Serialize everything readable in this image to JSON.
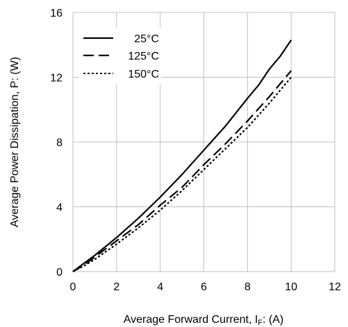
{
  "chart_data": {
    "type": "line",
    "xlabel": "Average Forward Current, I",
    "xlabel_sub": "F",
    "xlabel_tail": ": (A)",
    "ylabel": "Average Power Dissipation, P: (W)",
    "xlim": [
      0,
      12
    ],
    "ylim": [
      0,
      16
    ],
    "xticks": [
      0,
      2,
      4,
      6,
      8,
      10,
      12
    ],
    "yticks": [
      0,
      4,
      8,
      12,
      16
    ],
    "xtick_labels": [
      "0",
      "2",
      "4",
      "6",
      "8",
      "10",
      "12"
    ],
    "ytick_labels": [
      "0",
      "4",
      "8",
      "12",
      "16"
    ],
    "grid": true,
    "legend_position": "top-left",
    "series": [
      {
        "name": "25°C",
        "style": "solid",
        "color": "#000000",
        "x": [
          0,
          0.5,
          1,
          2,
          3,
          4,
          5,
          6,
          7,
          8,
          8.5,
          9,
          9.5,
          10
        ],
        "y": [
          0,
          0.5,
          1.0,
          2.1,
          3.3,
          4.6,
          6.0,
          7.5,
          9.0,
          10.7,
          11.5,
          12.5,
          13.3,
          14.3
        ]
      },
      {
        "name": "125°C",
        "style": "dash",
        "color": "#000000",
        "x": [
          0,
          0.5,
          1,
          2,
          3,
          4,
          5,
          6,
          7,
          8,
          9,
          10
        ],
        "y": [
          0,
          0.4,
          0.9,
          1.9,
          2.9,
          4.1,
          5.2,
          6.6,
          7.9,
          9.3,
          10.8,
          12.4
        ]
      },
      {
        "name": "150°C",
        "style": "dot",
        "color": "#000000",
        "x": [
          0,
          0.5,
          1,
          2,
          3,
          4,
          5,
          6,
          7,
          8,
          9,
          10
        ],
        "y": [
          0,
          0.35,
          0.75,
          1.7,
          2.7,
          3.8,
          5.0,
          6.3,
          7.6,
          8.9,
          10.4,
          12.0
        ]
      }
    ]
  }
}
